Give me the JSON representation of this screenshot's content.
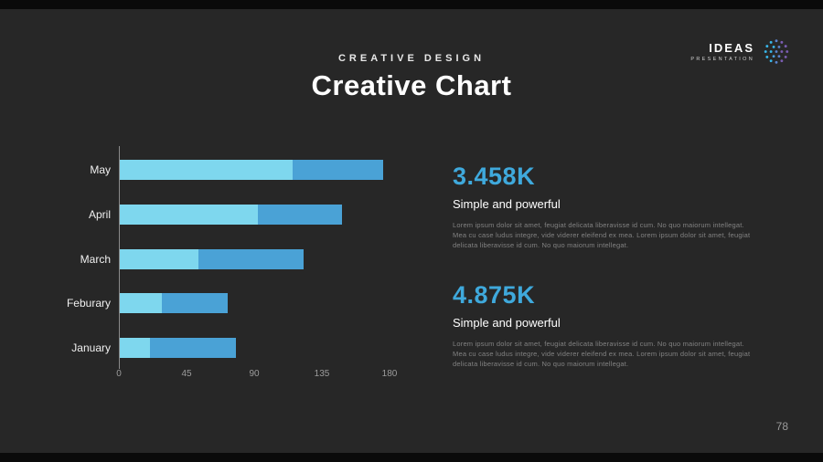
{
  "slide": {
    "kicker": "CREATIVE DESIGN",
    "title": "Creative Chart",
    "page_number": "78",
    "background": "#272727"
  },
  "logo": {
    "name": "IDEAS",
    "subtitle": "PRESENTATION",
    "icon": "dotted-sphere-icon"
  },
  "chart_data": {
    "type": "bar",
    "orientation": "horizontal",
    "stacked": true,
    "title": "Creative Chart",
    "categories": [
      "May",
      "April",
      "March",
      "Feburary",
      "January"
    ],
    "series": [
      {
        "name": "light-segment",
        "color": "#7ed7ee",
        "values": [
          115,
          92,
          52,
          28,
          20
        ]
      },
      {
        "name": "dark-segment",
        "color": "#4aa2d6",
        "values": [
          60,
          56,
          70,
          44,
          57
        ]
      }
    ],
    "totals": [
      175,
      148,
      122,
      72,
      77
    ],
    "xlabel": "",
    "ylabel": "",
    "xlim": [
      0,
      180
    ],
    "xticks": [
      "0",
      "45",
      "90",
      "135",
      "180"
    ],
    "grid": false,
    "legend": false
  },
  "stats": [
    {
      "value": "3.458K",
      "label": "Simple and powerful",
      "description": "Lorem ipsum dolor sit amet, feugiat delicata liberavisse id cum. No quo maiorum intellegat. Mea cu case ludus integre, vide viderer eleifend ex mea. Lorem ipsum dolor sit amet, feugiat delicata liberavisse id cum. No quo maiorum intellegat."
    },
    {
      "value": "4.875K",
      "label": "Simple and powerful",
      "description": "Lorem ipsum dolor sit amet, feugiat delicata liberavisse id cum. No quo maiorum intellegat. Mea cu case ludus integre, vide viderer eleifend ex mea. Lorem ipsum dolor sit amet, feugiat delicata liberavisse id cum. No quo maiorum intellegat."
    }
  ],
  "colors": {
    "accent": "#3fa9dc",
    "bar_light": "#7ed7ee",
    "bar_dark": "#4aa2d6",
    "axis": "#8a8a8a",
    "muted_text": "#828282"
  }
}
